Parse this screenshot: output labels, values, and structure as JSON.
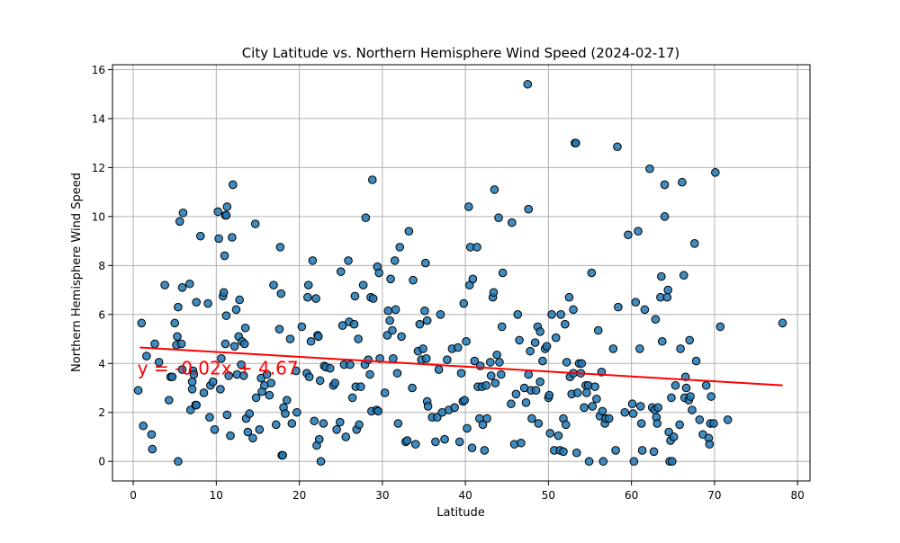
{
  "chart_data": {
    "type": "scatter",
    "title": "City Latitude vs. Northern Hemisphere Wind Speed (2024-02-17)",
    "xlabel": "Latitude",
    "ylabel": "Northern Hemisphere Wind Speed",
    "xlim": [
      -2.5,
      81.5
    ],
    "ylim": [
      -0.8,
      16.2
    ],
    "xticks": [
      0,
      10,
      20,
      30,
      40,
      50,
      60,
      70,
      80
    ],
    "yticks": [
      0,
      2,
      4,
      6,
      8,
      10,
      12,
      14,
      16
    ],
    "grid": true,
    "colors": {
      "points": "#1f77b4",
      "point_edge": "#000000",
      "regression": "#ff0000",
      "annotation": "#ff0000",
      "grid": "#b0b0b0"
    },
    "regression": {
      "slope": -0.02,
      "intercept": 4.67,
      "x_range": [
        0.8,
        78.2
      ]
    },
    "annotation": {
      "text": "y = -0.02x + 4.67",
      "x": 0.5,
      "y": 3.55
    },
    "points": [
      [
        0.6,
        2.9
      ],
      [
        1.0,
        5.65
      ],
      [
        1.2,
        1.45
      ],
      [
        1.6,
        4.3
      ],
      [
        2.2,
        1.1
      ],
      [
        2.3,
        0.5
      ],
      [
        2.6,
        4.8
      ],
      [
        3.1,
        4.05
      ],
      [
        3.8,
        7.2
      ],
      [
        4.3,
        2.5
      ],
      [
        4.5,
        3.45
      ],
      [
        4.7,
        3.45
      ],
      [
        5.0,
        5.65
      ],
      [
        5.2,
        4.75
      ],
      [
        5.3,
        5.1
      ],
      [
        5.4,
        6.3
      ],
      [
        5.4,
        0.0
      ],
      [
        5.6,
        9.8
      ],
      [
        5.8,
        4.8
      ],
      [
        5.9,
        3.75
      ],
      [
        5.9,
        7.1
      ],
      [
        6.0,
        10.15
      ],
      [
        6.8,
        7.25
      ],
      [
        6.9,
        2.1
      ],
      [
        7.1,
        3.25
      ],
      [
        7.1,
        2.95
      ],
      [
        7.2,
        3.7
      ],
      [
        7.3,
        3.55
      ],
      [
        7.5,
        2.3
      ],
      [
        7.6,
        6.5
      ],
      [
        7.6,
        2.3
      ],
      [
        8.1,
        9.2
      ],
      [
        8.5,
        2.8
      ],
      [
        9.0,
        6.45
      ],
      [
        9.2,
        1.8
      ],
      [
        9.3,
        3.1
      ],
      [
        9.6,
        3.25
      ],
      [
        9.8,
        1.3
      ],
      [
        10.2,
        10.2
      ],
      [
        10.3,
        9.1
      ],
      [
        10.5,
        2.95
      ],
      [
        10.6,
        4.2
      ],
      [
        10.8,
        6.75
      ],
      [
        10.9,
        6.9
      ],
      [
        11.0,
        8.4
      ],
      [
        11.1,
        10.05
      ],
      [
        11.1,
        4.8
      ],
      [
        11.2,
        10.05
      ],
      [
        11.2,
        5.95
      ],
      [
        11.3,
        1.9
      ],
      [
        11.3,
        10.4
      ],
      [
        11.5,
        3.5
      ],
      [
        11.7,
        1.05
      ],
      [
        11.9,
        9.15
      ],
      [
        12.0,
        11.3
      ],
      [
        12.2,
        4.7
      ],
      [
        12.4,
        6.2
      ],
      [
        12.5,
        3.55
      ],
      [
        12.7,
        5.1
      ],
      [
        12.8,
        6.6
      ],
      [
        13.0,
        3.95
      ],
      [
        13.1,
        4.9
      ],
      [
        13.3,
        3.5
      ],
      [
        13.4,
        4.8
      ],
      [
        13.5,
        5.45
      ],
      [
        13.6,
        1.75
      ],
      [
        13.8,
        1.2
      ],
      [
        14.0,
        1.95
      ],
      [
        14.4,
        0.95
      ],
      [
        14.7,
        9.7
      ],
      [
        14.8,
        2.6
      ],
      [
        15.2,
        1.3
      ],
      [
        15.4,
        3.4
      ],
      [
        15.5,
        2.85
      ],
      [
        15.8,
        3.1
      ],
      [
        16.1,
        3.55
      ],
      [
        16.4,
        2.7
      ],
      [
        16.6,
        3.2
      ],
      [
        16.9,
        7.2
      ],
      [
        17.2,
        1.5
      ],
      [
        17.6,
        5.4
      ],
      [
        17.7,
        8.75
      ],
      [
        17.8,
        6.85
      ],
      [
        17.9,
        0.25
      ],
      [
        18.0,
        0.25
      ],
      [
        18.1,
        2.2
      ],
      [
        18.3,
        1.95
      ],
      [
        18.5,
        2.5
      ],
      [
        18.9,
        5.0
      ],
      [
        19.1,
        1.55
      ],
      [
        19.6,
        3.7
      ],
      [
        19.7,
        2.0
      ],
      [
        20.3,
        5.5
      ],
      [
        20.9,
        3.6
      ],
      [
        21.0,
        6.7
      ],
      [
        21.1,
        7.2
      ],
      [
        21.2,
        3.45
      ],
      [
        21.4,
        4.9
      ],
      [
        21.6,
        8.2
      ],
      [
        21.8,
        1.65
      ],
      [
        22.0,
        6.65
      ],
      [
        22.1,
        0.65
      ],
      [
        22.2,
        5.15
      ],
      [
        22.3,
        5.1
      ],
      [
        22.4,
        0.9
      ],
      [
        22.5,
        3.3
      ],
      [
        22.6,
        0.0
      ],
      [
        22.9,
        1.55
      ],
      [
        23.0,
        3.9
      ],
      [
        23.2,
        3.85
      ],
      [
        23.7,
        3.8
      ],
      [
        24.1,
        3.1
      ],
      [
        24.3,
        3.2
      ],
      [
        24.5,
        1.3
      ],
      [
        24.9,
        1.6
      ],
      [
        25.0,
        7.75
      ],
      [
        25.2,
        5.55
      ],
      [
        25.4,
        3.95
      ],
      [
        25.6,
        1.0
      ],
      [
        25.9,
        8.2
      ],
      [
        26.0,
        5.7
      ],
      [
        26.1,
        3.95
      ],
      [
        26.4,
        2.6
      ],
      [
        26.6,
        5.6
      ],
      [
        26.7,
        6.75
      ],
      [
        26.8,
        3.05
      ],
      [
        26.9,
        1.3
      ],
      [
        27.1,
        5.0
      ],
      [
        27.2,
        1.5
      ],
      [
        27.4,
        3.05
      ],
      [
        27.7,
        7.2
      ],
      [
        27.9,
        3.95
      ],
      [
        28.0,
        9.95
      ],
      [
        28.3,
        4.15
      ],
      [
        28.5,
        3.55
      ],
      [
        28.6,
        6.7
      ],
      [
        28.7,
        2.05
      ],
      [
        28.8,
        11.5
      ],
      [
        28.9,
        6.65
      ],
      [
        29.3,
        2.1
      ],
      [
        29.4,
        7.95
      ],
      [
        29.5,
        2.05
      ],
      [
        29.6,
        7.7
      ],
      [
        29.7,
        4.2
      ],
      [
        30.3,
        2.8
      ],
      [
        30.6,
        5.15
      ],
      [
        30.7,
        6.15
      ],
      [
        30.9,
        5.75
      ],
      [
        31.0,
        7.45
      ],
      [
        31.2,
        5.35
      ],
      [
        31.3,
        4.2
      ],
      [
        31.5,
        8.2
      ],
      [
        31.6,
        6.2
      ],
      [
        31.8,
        3.6
      ],
      [
        31.9,
        1.55
      ],
      [
        32.1,
        8.75
      ],
      [
        32.3,
        5.1
      ],
      [
        32.8,
        0.8
      ],
      [
        33.0,
        0.85
      ],
      [
        33.2,
        9.4
      ],
      [
        33.6,
        3.0
      ],
      [
        33.7,
        7.4
      ],
      [
        34.0,
        0.7
      ],
      [
        34.3,
        4.5
      ],
      [
        34.5,
        5.6
      ],
      [
        34.7,
        4.15
      ],
      [
        34.9,
        4.6
      ],
      [
        35.1,
        6.15
      ],
      [
        35.2,
        8.1
      ],
      [
        35.3,
        4.2
      ],
      [
        35.4,
        2.45
      ],
      [
        35.4,
        5.75
      ],
      [
        35.5,
        2.25
      ],
      [
        36.0,
        1.8
      ],
      [
        36.4,
        0.8
      ],
      [
        36.6,
        1.8
      ],
      [
        36.8,
        3.75
      ],
      [
        37.0,
        6.0
      ],
      [
        37.2,
        2.0
      ],
      [
        37.5,
        0.9
      ],
      [
        37.8,
        4.15
      ],
      [
        38.0,
        2.1
      ],
      [
        38.4,
        4.6
      ],
      [
        38.7,
        2.2
      ],
      [
        39.1,
        4.65
      ],
      [
        39.3,
        0.8
      ],
      [
        39.5,
        3.6
      ],
      [
        39.7,
        2.45
      ],
      [
        39.8,
        6.45
      ],
      [
        39.9,
        2.5
      ],
      [
        40.1,
        4.9
      ],
      [
        40.2,
        1.35
      ],
      [
        40.4,
        10.4
      ],
      [
        40.5,
        7.2
      ],
      [
        40.6,
        8.75
      ],
      [
        40.8,
        0.55
      ],
      [
        40.9,
        7.45
      ],
      [
        41.1,
        4.1
      ],
      [
        41.4,
        8.75
      ],
      [
        41.5,
        3.05
      ],
      [
        41.7,
        1.75
      ],
      [
        41.8,
        3.9
      ],
      [
        42.0,
        3.05
      ],
      [
        42.1,
        1.5
      ],
      [
        42.3,
        0.45
      ],
      [
        42.5,
        3.1
      ],
      [
        42.6,
        1.75
      ],
      [
        43.0,
        4.05
      ],
      [
        43.1,
        3.5
      ],
      [
        43.3,
        6.7
      ],
      [
        43.4,
        6.9
      ],
      [
        43.5,
        11.1
      ],
      [
        43.6,
        3.2
      ],
      [
        43.8,
        4.35
      ],
      [
        44.0,
        9.95
      ],
      [
        44.1,
        4.05
      ],
      [
        44.3,
        3.55
      ],
      [
        44.4,
        5.5
      ],
      [
        44.5,
        7.7
      ],
      [
        45.5,
        2.35
      ],
      [
        45.6,
        9.75
      ],
      [
        45.9,
        0.7
      ],
      [
        46.1,
        2.75
      ],
      [
        46.3,
        6.0
      ],
      [
        46.5,
        4.95
      ],
      [
        46.7,
        0.75
      ],
      [
        47.1,
        3.0
      ],
      [
        47.3,
        2.4
      ],
      [
        47.5,
        15.4
      ],
      [
        47.6,
        10.3
      ],
      [
        47.6,
        3.55
      ],
      [
        47.8,
        4.5
      ],
      [
        47.9,
        2.9
      ],
      [
        48.0,
        1.75
      ],
      [
        48.4,
        4.85
      ],
      [
        48.5,
        2.9
      ],
      [
        48.7,
        5.5
      ],
      [
        48.8,
        1.55
      ],
      [
        49.0,
        5.3
      ],
      [
        49.0,
        3.25
      ],
      [
        49.3,
        4.1
      ],
      [
        49.6,
        4.6
      ],
      [
        49.8,
        4.7
      ],
      [
        50.0,
        2.6
      ],
      [
        50.1,
        2.7
      ],
      [
        50.2,
        1.15
      ],
      [
        50.4,
        6.0
      ],
      [
        50.7,
        0.45
      ],
      [
        50.9,
        5.05
      ],
      [
        51.2,
        1.05
      ],
      [
        51.4,
        0.45
      ],
      [
        51.5,
        6.0
      ],
      [
        51.8,
        0.4
      ],
      [
        51.8,
        1.75
      ],
      [
        52.0,
        5.6
      ],
      [
        52.1,
        1.5
      ],
      [
        52.2,
        4.05
      ],
      [
        52.5,
        6.7
      ],
      [
        52.6,
        3.45
      ],
      [
        52.8,
        2.75
      ],
      [
        53.0,
        3.6
      ],
      [
        53.0,
        6.2
      ],
      [
        53.2,
        13.0
      ],
      [
        53.3,
        13.0
      ],
      [
        53.4,
        0.35
      ],
      [
        53.5,
        2.8
      ],
      [
        53.7,
        4.0
      ],
      [
        53.9,
        3.6
      ],
      [
        54.0,
        4.0
      ],
      [
        54.3,
        2.2
      ],
      [
        54.5,
        3.1
      ],
      [
        54.6,
        2.8
      ],
      [
        54.8,
        3.1
      ],
      [
        54.9,
        0.0
      ],
      [
        55.2,
        7.7
      ],
      [
        55.3,
        2.25
      ],
      [
        55.6,
        3.05
      ],
      [
        55.8,
        2.55
      ],
      [
        56.0,
        5.35
      ],
      [
        56.2,
        1.85
      ],
      [
        56.4,
        3.65
      ],
      [
        56.5,
        2.05
      ],
      [
        56.6,
        0.0
      ],
      [
        56.8,
        1.55
      ],
      [
        56.9,
        1.75
      ],
      [
        57.3,
        1.75
      ],
      [
        57.8,
        4.6
      ],
      [
        58.1,
        0.45
      ],
      [
        58.3,
        12.85
      ],
      [
        58.4,
        6.3
      ],
      [
        59.2,
        2.0
      ],
      [
        59.6,
        9.25
      ],
      [
        60.1,
        2.35
      ],
      [
        60.2,
        1.95
      ],
      [
        60.3,
        0.0
      ],
      [
        60.5,
        6.5
      ],
      [
        60.8,
        9.4
      ],
      [
        61.0,
        4.6
      ],
      [
        61.1,
        2.25
      ],
      [
        61.2,
        1.55
      ],
      [
        61.3,
        0.45
      ],
      [
        61.6,
        6.2
      ],
      [
        62.2,
        11.95
      ],
      [
        62.5,
        2.2
      ],
      [
        62.7,
        0.4
      ],
      [
        62.8,
        2.1
      ],
      [
        62.9,
        5.8
      ],
      [
        63.0,
        1.8
      ],
      [
        63.1,
        1.55
      ],
      [
        63.2,
        2.2
      ],
      [
        63.5,
        6.7
      ],
      [
        63.6,
        7.55
      ],
      [
        63.7,
        4.9
      ],
      [
        64.0,
        10.0
      ],
      [
        64.0,
        11.3
      ],
      [
        64.3,
        6.7
      ],
      [
        64.4,
        7.0
      ],
      [
        64.5,
        1.2
      ],
      [
        64.6,
        0.0
      ],
      [
        64.7,
        0.85
      ],
      [
        64.8,
        2.6
      ],
      [
        64.9,
        0.0
      ],
      [
        65.1,
        1.0
      ],
      [
        65.3,
        3.1
      ],
      [
        65.8,
        1.5
      ],
      [
        65.9,
        4.6
      ],
      [
        66.1,
        11.4
      ],
      [
        66.3,
        7.6
      ],
      [
        66.4,
        2.6
      ],
      [
        66.5,
        3.45
      ],
      [
        66.6,
        3.0
      ],
      [
        66.9,
        2.5
      ],
      [
        67.0,
        4.95
      ],
      [
        67.1,
        2.65
      ],
      [
        67.3,
        2.1
      ],
      [
        67.6,
        8.9
      ],
      [
        67.8,
        4.1
      ],
      [
        68.2,
        1.7
      ],
      [
        68.6,
        1.1
      ],
      [
        69.0,
        3.1
      ],
      [
        69.3,
        0.95
      ],
      [
        69.4,
        0.7
      ],
      [
        69.5,
        1.55
      ],
      [
        69.6,
        2.65
      ],
      [
        69.9,
        1.55
      ],
      [
        70.1,
        11.8
      ],
      [
        70.7,
        5.5
      ],
      [
        71.6,
        1.7
      ],
      [
        78.2,
        5.65
      ]
    ]
  }
}
